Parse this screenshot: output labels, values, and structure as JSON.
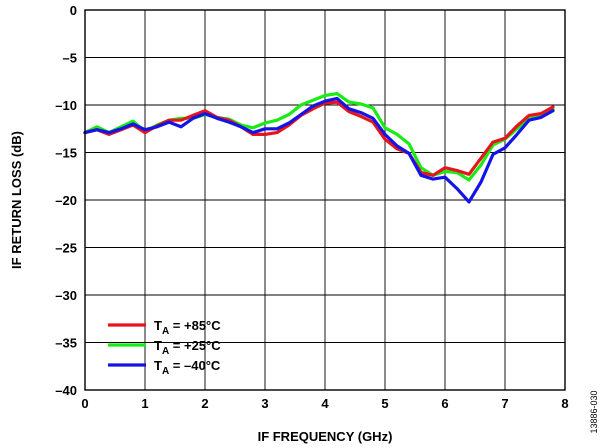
{
  "chart_data": {
    "type": "line",
    "title": "",
    "xlabel": "IF FREQUENCY (GHz)",
    "ylabel": "IF RETURN LOSS (dB)",
    "xlim": [
      0,
      8
    ],
    "ylim": [
      -40,
      0
    ],
    "xticks": [
      "0",
      "1",
      "2",
      "3",
      "4",
      "5",
      "6",
      "7",
      "8"
    ],
    "yticks": [
      "0",
      "–5",
      "–10",
      "–15",
      "–20",
      "–25",
      "–30",
      "–35",
      "–40"
    ],
    "grid": true,
    "legend_position": "bottom-left",
    "figure_id": "13886-030",
    "series": [
      {
        "name": "T_A = +85°C",
        "label_main": "T",
        "label_sub": "A",
        "label_rest": " = +85°C",
        "color": "#e8141b",
        "x": [
          0,
          0.2,
          0.4,
          0.6,
          0.8,
          1.0,
          1.2,
          1.4,
          1.6,
          1.8,
          2.0,
          2.2,
          2.4,
          2.6,
          2.8,
          3.0,
          3.2,
          3.4,
          3.6,
          3.8,
          4.0,
          4.2,
          4.4,
          4.6,
          4.8,
          5.0,
          5.2,
          5.4,
          5.6,
          5.8,
          6.0,
          6.2,
          6.4,
          6.6,
          6.8,
          7.0,
          7.2,
          7.4,
          7.6,
          7.8
        ],
        "y": [
          -12.9,
          -12.6,
          -13.1,
          -12.6,
          -12.1,
          -12.9,
          -12.2,
          -11.6,
          -11.6,
          -11.1,
          -10.6,
          -11.3,
          -11.6,
          -12.3,
          -13.1,
          -13.1,
          -12.9,
          -12.1,
          -11.1,
          -10.4,
          -9.8,
          -9.7,
          -10.7,
          -11.2,
          -11.8,
          -13.6,
          -14.6,
          -15.1,
          -17.1,
          -17.4,
          -16.6,
          -16.9,
          -17.3,
          -15.6,
          -13.9,
          -13.5,
          -12.2,
          -11.1,
          -10.9,
          -10.2
        ]
      },
      {
        "name": "T_A = +25°C",
        "label_main": "T",
        "label_sub": "A",
        "label_rest": " = +25°C",
        "color": "#19ec14",
        "x": [
          0,
          0.2,
          0.4,
          0.6,
          0.8,
          1.0,
          1.2,
          1.4,
          1.6,
          1.8,
          2.0,
          2.2,
          2.4,
          2.6,
          2.8,
          3.0,
          3.2,
          3.4,
          3.6,
          3.8,
          4.0,
          4.2,
          4.4,
          4.6,
          4.8,
          5.0,
          5.2,
          5.4,
          5.6,
          5.8,
          6.0,
          6.2,
          6.4,
          6.6,
          6.8,
          7.0,
          7.2,
          7.4,
          7.6,
          7.8
        ],
        "y": [
          -12.9,
          -12.3,
          -12.9,
          -12.3,
          -11.7,
          -12.8,
          -12.1,
          -11.6,
          -11.4,
          -11.4,
          -11.0,
          -11.3,
          -11.5,
          -12.1,
          -12.4,
          -11.9,
          -11.6,
          -11.0,
          -10.0,
          -9.5,
          -9.0,
          -8.8,
          -9.7,
          -9.9,
          -10.3,
          -12.4,
          -13.1,
          -14.1,
          -16.6,
          -17.4,
          -17.0,
          -17.1,
          -17.9,
          -16.3,
          -14.2,
          -13.6,
          -12.5,
          -11.5,
          -11.0,
          -10.4
        ]
      },
      {
        "name": "T_A = –40°C",
        "label_main": "T",
        "label_sub": "A",
        "label_rest": " = –40°C",
        "color": "#1414e6",
        "x": [
          0,
          0.2,
          0.4,
          0.6,
          0.8,
          1.0,
          1.2,
          1.4,
          1.6,
          1.8,
          2.0,
          2.2,
          2.4,
          2.6,
          2.8,
          3.0,
          3.2,
          3.4,
          3.6,
          3.8,
          4.0,
          4.2,
          4.4,
          4.6,
          4.8,
          5.0,
          5.2,
          5.4,
          5.6,
          5.8,
          6.0,
          6.2,
          6.4,
          6.6,
          6.8,
          7.0,
          7.2,
          7.4,
          7.6,
          7.8
        ],
        "y": [
          -12.9,
          -12.6,
          -12.9,
          -12.5,
          -12.0,
          -12.6,
          -12.3,
          -11.8,
          -12.3,
          -11.4,
          -10.9,
          -11.4,
          -11.8,
          -12.3,
          -12.9,
          -12.5,
          -12.5,
          -11.9,
          -11.0,
          -10.1,
          -9.6,
          -9.3,
          -10.4,
          -10.8,
          -11.4,
          -13.1,
          -14.3,
          -15.1,
          -17.4,
          -17.8,
          -17.6,
          -18.8,
          -20.2,
          -18.1,
          -15.2,
          -14.5,
          -13.1,
          -11.6,
          -11.3,
          -10.6
        ]
      }
    ]
  }
}
